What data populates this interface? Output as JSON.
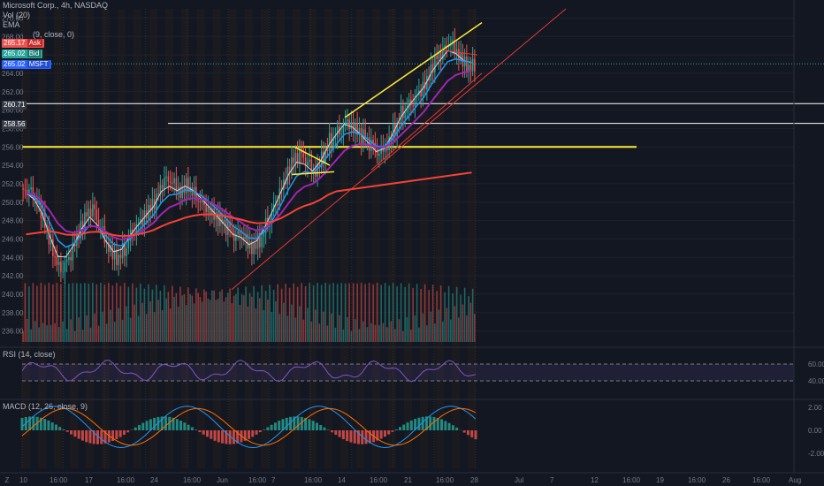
{
  "legend": {
    "symbol_line": "Microsoft Corp., 4h, NASDAQ",
    "vol_label": "Vol (20)",
    "ema_label": "EMA",
    "ma_label": "(9, close, 0)"
  },
  "price_tags": [
    {
      "value": "265.17",
      "label": "Ask",
      "extra": "",
      "color": "#ef5350"
    },
    {
      "value": "265.02",
      "label": "Bid",
      "extra": "",
      "color": "#26a69a"
    },
    {
      "value": "265.02",
      "label": "MSFT",
      "extra": "",
      "color": "#2962ff"
    },
    {
      "value": "260.71",
      "label": "",
      "extra": "",
      "color": "#363a45"
    },
    {
      "value": "258.56",
      "label": "",
      "extra": "",
      "color": "#363a45"
    }
  ],
  "rsi": {
    "label": "RSI (14, close)",
    "upper": 60,
    "lower": 40
  },
  "macd": {
    "label": "MACD (12, 26, close, 9)"
  },
  "colors": {
    "up": "#26a69a",
    "down": "#ef5350",
    "ema_white": "#d1d4dc",
    "ema_blue": "#2196f3",
    "ema_purple": "#9c27b0",
    "ema_orange": "#f44336",
    "trend_yellow": "#ffeb3b",
    "hline_white": "#ffffff",
    "red_line": "#e53935"
  },
  "chart_data": {
    "type": "candlestick",
    "symbol": "MSFT",
    "interval": "4h",
    "price_axis": {
      "ticks": [
        236,
        238,
        240,
        242,
        244,
        246,
        248,
        250,
        252,
        254,
        256,
        258,
        260,
        262,
        264,
        266,
        268,
        270
      ],
      "ylim": [
        235,
        271
      ]
    },
    "rsi_axis": {
      "ticks": [
        60.0,
        40.0
      ]
    },
    "macd_axis": {
      "ticks": [
        2.0,
        0.0,
        -2.0
      ]
    },
    "time_axis_labels": [
      "10",
      "16:00",
      "17",
      "16:00",
      "24",
      "16:00",
      "Jun",
      "16:00",
      "7",
      "16:00",
      "14",
      "16:00",
      "21",
      "16:00",
      "28",
      "Jul",
      "7",
      "12",
      "16:00",
      "19",
      "16:00",
      "26",
      "16:00",
      "Aug"
    ],
    "horizontal_lines": [
      {
        "price": 260.71,
        "color": "white"
      },
      {
        "price": 258.56,
        "color": "white"
      },
      {
        "price": 256.0,
        "color": "yellow"
      }
    ],
    "candles_close_approx": [
      251,
      250,
      248,
      245,
      243,
      244,
      246,
      248,
      249,
      247,
      245,
      244,
      245,
      247,
      248,
      249,
      250,
      252,
      252,
      251,
      252,
      251,
      250,
      249,
      248,
      247,
      246,
      246,
      245,
      246,
      248,
      250,
      252,
      254,
      255,
      254,
      253,
      255,
      257,
      258,
      259,
      258,
      257,
      256,
      255,
      256,
      258,
      260,
      261,
      262,
      263,
      265,
      266,
      267,
      266,
      265,
      265
    ]
  }
}
